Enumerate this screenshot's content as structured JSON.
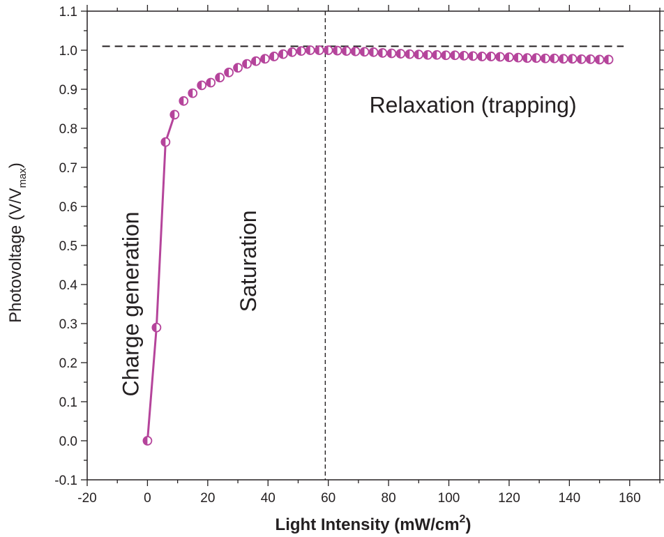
{
  "colors": {
    "series": "#b5449b",
    "axis": "#231f20"
  },
  "chart_data": {
    "type": "scatter",
    "xlabel": "Light Intensity (mW/cm",
    "xlabel_sup": "2",
    "xlabel_end": ")",
    "ylabel": "Photovoltage (V/V",
    "ylabel_sub": "max",
    "ylabel_end": ")",
    "xlim": [
      -20,
      170
    ],
    "ylim": [
      -0.1,
      1.1
    ],
    "xticks": [
      -20,
      0,
      20,
      40,
      60,
      80,
      100,
      120,
      140,
      160
    ],
    "yticks": [
      -0.1,
      0.0,
      0.1,
      0.2,
      0.3,
      0.4,
      0.5,
      0.6,
      0.7,
      0.8,
      0.9,
      1.0,
      1.1
    ],
    "grid": false,
    "markers": "half-filled circles",
    "reference_lines": [
      {
        "orientation": "horizontal",
        "y": 1.01,
        "x_from": -15,
        "x_to": 158,
        "style": "dashed"
      },
      {
        "orientation": "vertical",
        "x": 59,
        "style": "dashed"
      }
    ],
    "annotations": [
      {
        "text": "Charge generation",
        "x": -3,
        "y": 0.35,
        "rotation": -90
      },
      {
        "text": "Saturation",
        "x": 36,
        "y": 0.46,
        "rotation": -90
      },
      {
        "text": "Relaxation (trapping)",
        "x": 108,
        "y": 0.84,
        "rotation": 0
      }
    ],
    "series": [
      {
        "line_to_index": 3,
        "x": [
          0,
          3,
          6,
          9,
          12,
          15,
          18,
          21,
          24,
          27,
          30,
          33,
          36,
          39,
          42,
          45,
          48,
          51,
          54,
          57,
          60,
          63,
          66,
          69,
          72,
          75,
          78,
          81,
          84,
          87,
          90,
          93,
          96,
          99,
          102,
          105,
          108,
          111,
          114,
          117,
          120,
          123,
          126,
          129,
          132,
          135,
          138,
          141,
          144,
          147,
          150,
          153
        ],
        "y": [
          0.0,
          0.29,
          0.765,
          0.835,
          0.87,
          0.89,
          0.91,
          0.917,
          0.93,
          0.943,
          0.955,
          0.965,
          0.972,
          0.978,
          0.984,
          0.99,
          0.995,
          0.998,
          1.0,
          1.0,
          1.0,
          0.999,
          0.998,
          0.997,
          0.996,
          0.995,
          0.993,
          0.992,
          0.991,
          0.99,
          0.989,
          0.988,
          0.988,
          0.987,
          0.987,
          0.986,
          0.985,
          0.984,
          0.984,
          0.983,
          0.982,
          0.981,
          0.98,
          0.98,
          0.979,
          0.979,
          0.978,
          0.978,
          0.977,
          0.977,
          0.976,
          0.976
        ]
      }
    ]
  }
}
